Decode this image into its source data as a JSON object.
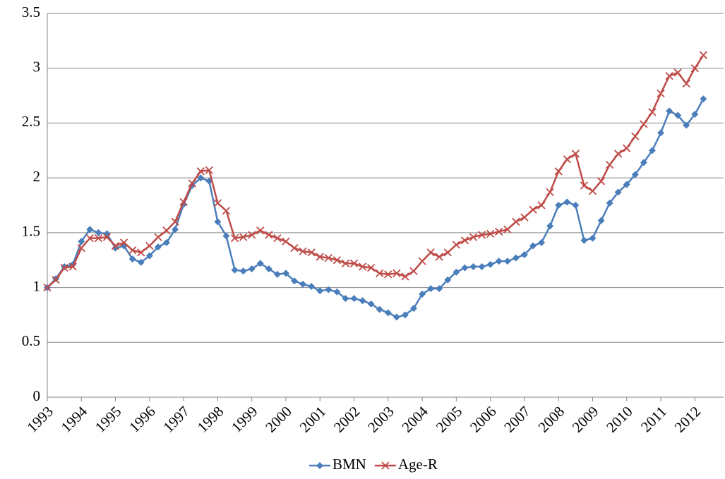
{
  "chart_data": {
    "type": "line",
    "categories": [
      "1993",
      null,
      null,
      null,
      "1994",
      null,
      null,
      null,
      "1995",
      null,
      null,
      null,
      "1996",
      null,
      null,
      null,
      "1997",
      null,
      null,
      null,
      "1998",
      null,
      null,
      null,
      "1999",
      null,
      null,
      null,
      "2000",
      null,
      null,
      null,
      "2001",
      null,
      null,
      null,
      "2002",
      null,
      null,
      null,
      "2003",
      null,
      null,
      null,
      "2004",
      null,
      null,
      null,
      "2005",
      null,
      null,
      null,
      "2006",
      null,
      null,
      null,
      "2007",
      null,
      null,
      null,
      "2008",
      null,
      null,
      null,
      "2009",
      null,
      null,
      null,
      "2010",
      null,
      null,
      null,
      "2011",
      null,
      null,
      null,
      "2012",
      null
    ],
    "series": [
      {
        "name": "BMN",
        "color": "#4a7ebb",
        "marker": "diamond",
        "values": [
          1.0,
          1.08,
          1.19,
          1.21,
          1.42,
          1.53,
          1.5,
          1.49,
          1.36,
          1.38,
          1.26,
          1.23,
          1.29,
          1.37,
          1.41,
          1.53,
          1.76,
          1.93,
          2.0,
          1.97,
          1.6,
          1.47,
          1.16,
          1.15,
          1.17,
          1.22,
          1.17,
          1.12,
          1.13,
          1.06,
          1.03,
          1.01,
          0.97,
          0.98,
          0.96,
          0.9,
          0.9,
          0.88,
          0.85,
          0.8,
          0.77,
          0.73,
          0.75,
          0.81,
          0.94,
          0.99,
          0.99,
          1.07,
          1.14,
          1.18,
          1.19,
          1.19,
          1.21,
          1.24,
          1.24,
          1.27,
          1.3,
          1.38,
          1.41,
          1.56,
          1.75,
          1.78,
          1.75,
          1.43,
          1.45,
          1.61,
          1.77,
          1.87,
          1.94,
          2.03,
          2.14,
          2.25,
          2.41,
          2.61,
          2.57,
          2.48,
          2.58,
          2.72
        ]
      },
      {
        "name": "Age-R",
        "color": "#be4b48",
        "marker": "x",
        "values": [
          1.0,
          1.07,
          1.18,
          1.19,
          1.36,
          1.45,
          1.45,
          1.46,
          1.38,
          1.41,
          1.34,
          1.32,
          1.38,
          1.46,
          1.52,
          1.6,
          1.78,
          1.95,
          2.06,
          2.07,
          1.77,
          1.7,
          1.45,
          1.46,
          1.48,
          1.52,
          1.48,
          1.45,
          1.42,
          1.36,
          1.33,
          1.32,
          1.28,
          1.27,
          1.25,
          1.22,
          1.22,
          1.19,
          1.18,
          1.13,
          1.12,
          1.13,
          1.1,
          1.15,
          1.24,
          1.32,
          1.28,
          1.32,
          1.39,
          1.43,
          1.46,
          1.48,
          1.49,
          1.51,
          1.53,
          1.6,
          1.64,
          1.71,
          1.75,
          1.87,
          2.06,
          2.17,
          2.22,
          1.93,
          1.88,
          1.97,
          2.12,
          2.22,
          2.27,
          2.38,
          2.49,
          2.6,
          2.77,
          2.93,
          2.96,
          2.86,
          3.0,
          3.12
        ]
      }
    ],
    "ylim": [
      0,
      3.5
    ],
    "yticks": [
      0,
      0.5,
      1,
      1.5,
      2,
      2.5,
      3,
      3.5
    ],
    "grid": true,
    "legend": "bottom"
  }
}
